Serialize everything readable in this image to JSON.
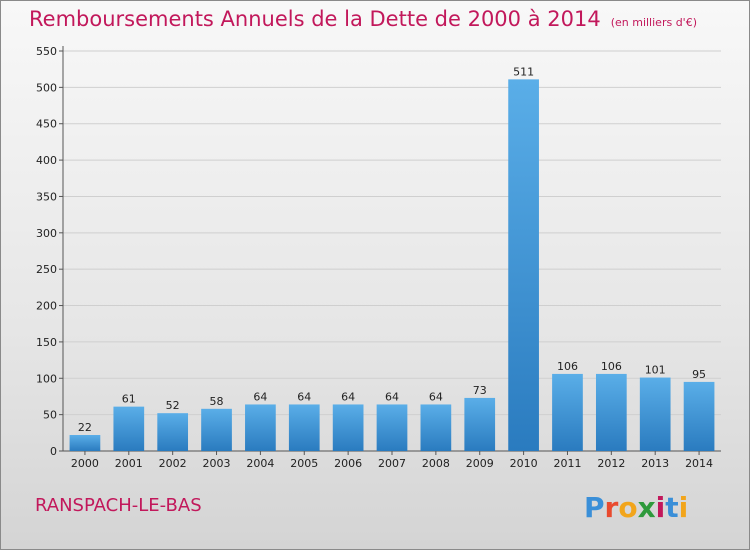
{
  "title": "Remboursements Annuels de la Dette de 2000 à 2014",
  "unit_note": "(en milliers d'€)",
  "commune": "RANSPACH-LE-BAS",
  "logo": {
    "letters": [
      "P",
      "r",
      "o",
      "x",
      "i",
      "t",
      "i"
    ],
    "colors": [
      "#3a8fd8",
      "#e94a2e",
      "#f2a51b",
      "#2e9a3c",
      "#c2185b",
      "#3a8fd8",
      "#f2a51b"
    ]
  },
  "colors": {
    "bar_top": "#5aaee8",
    "bar_bottom": "#2a7bbf",
    "title": "#c2185b",
    "gridline": "#cfcfcf"
  },
  "chart_data": {
    "type": "bar",
    "categories": [
      "2000",
      "2001",
      "2002",
      "2003",
      "2004",
      "2005",
      "2006",
      "2007",
      "2008",
      "2009",
      "2010",
      "2011",
      "2012",
      "2013",
      "2014"
    ],
    "values": [
      22,
      61,
      52,
      58,
      64,
      64,
      64,
      64,
      64,
      73,
      511,
      106,
      106,
      101,
      95
    ],
    "ylim": [
      0,
      550
    ],
    "yticks": [
      0,
      50,
      100,
      150,
      200,
      250,
      300,
      350,
      400,
      450,
      500,
      550
    ],
    "grid": true,
    "xlabel": "",
    "ylabel": ""
  }
}
